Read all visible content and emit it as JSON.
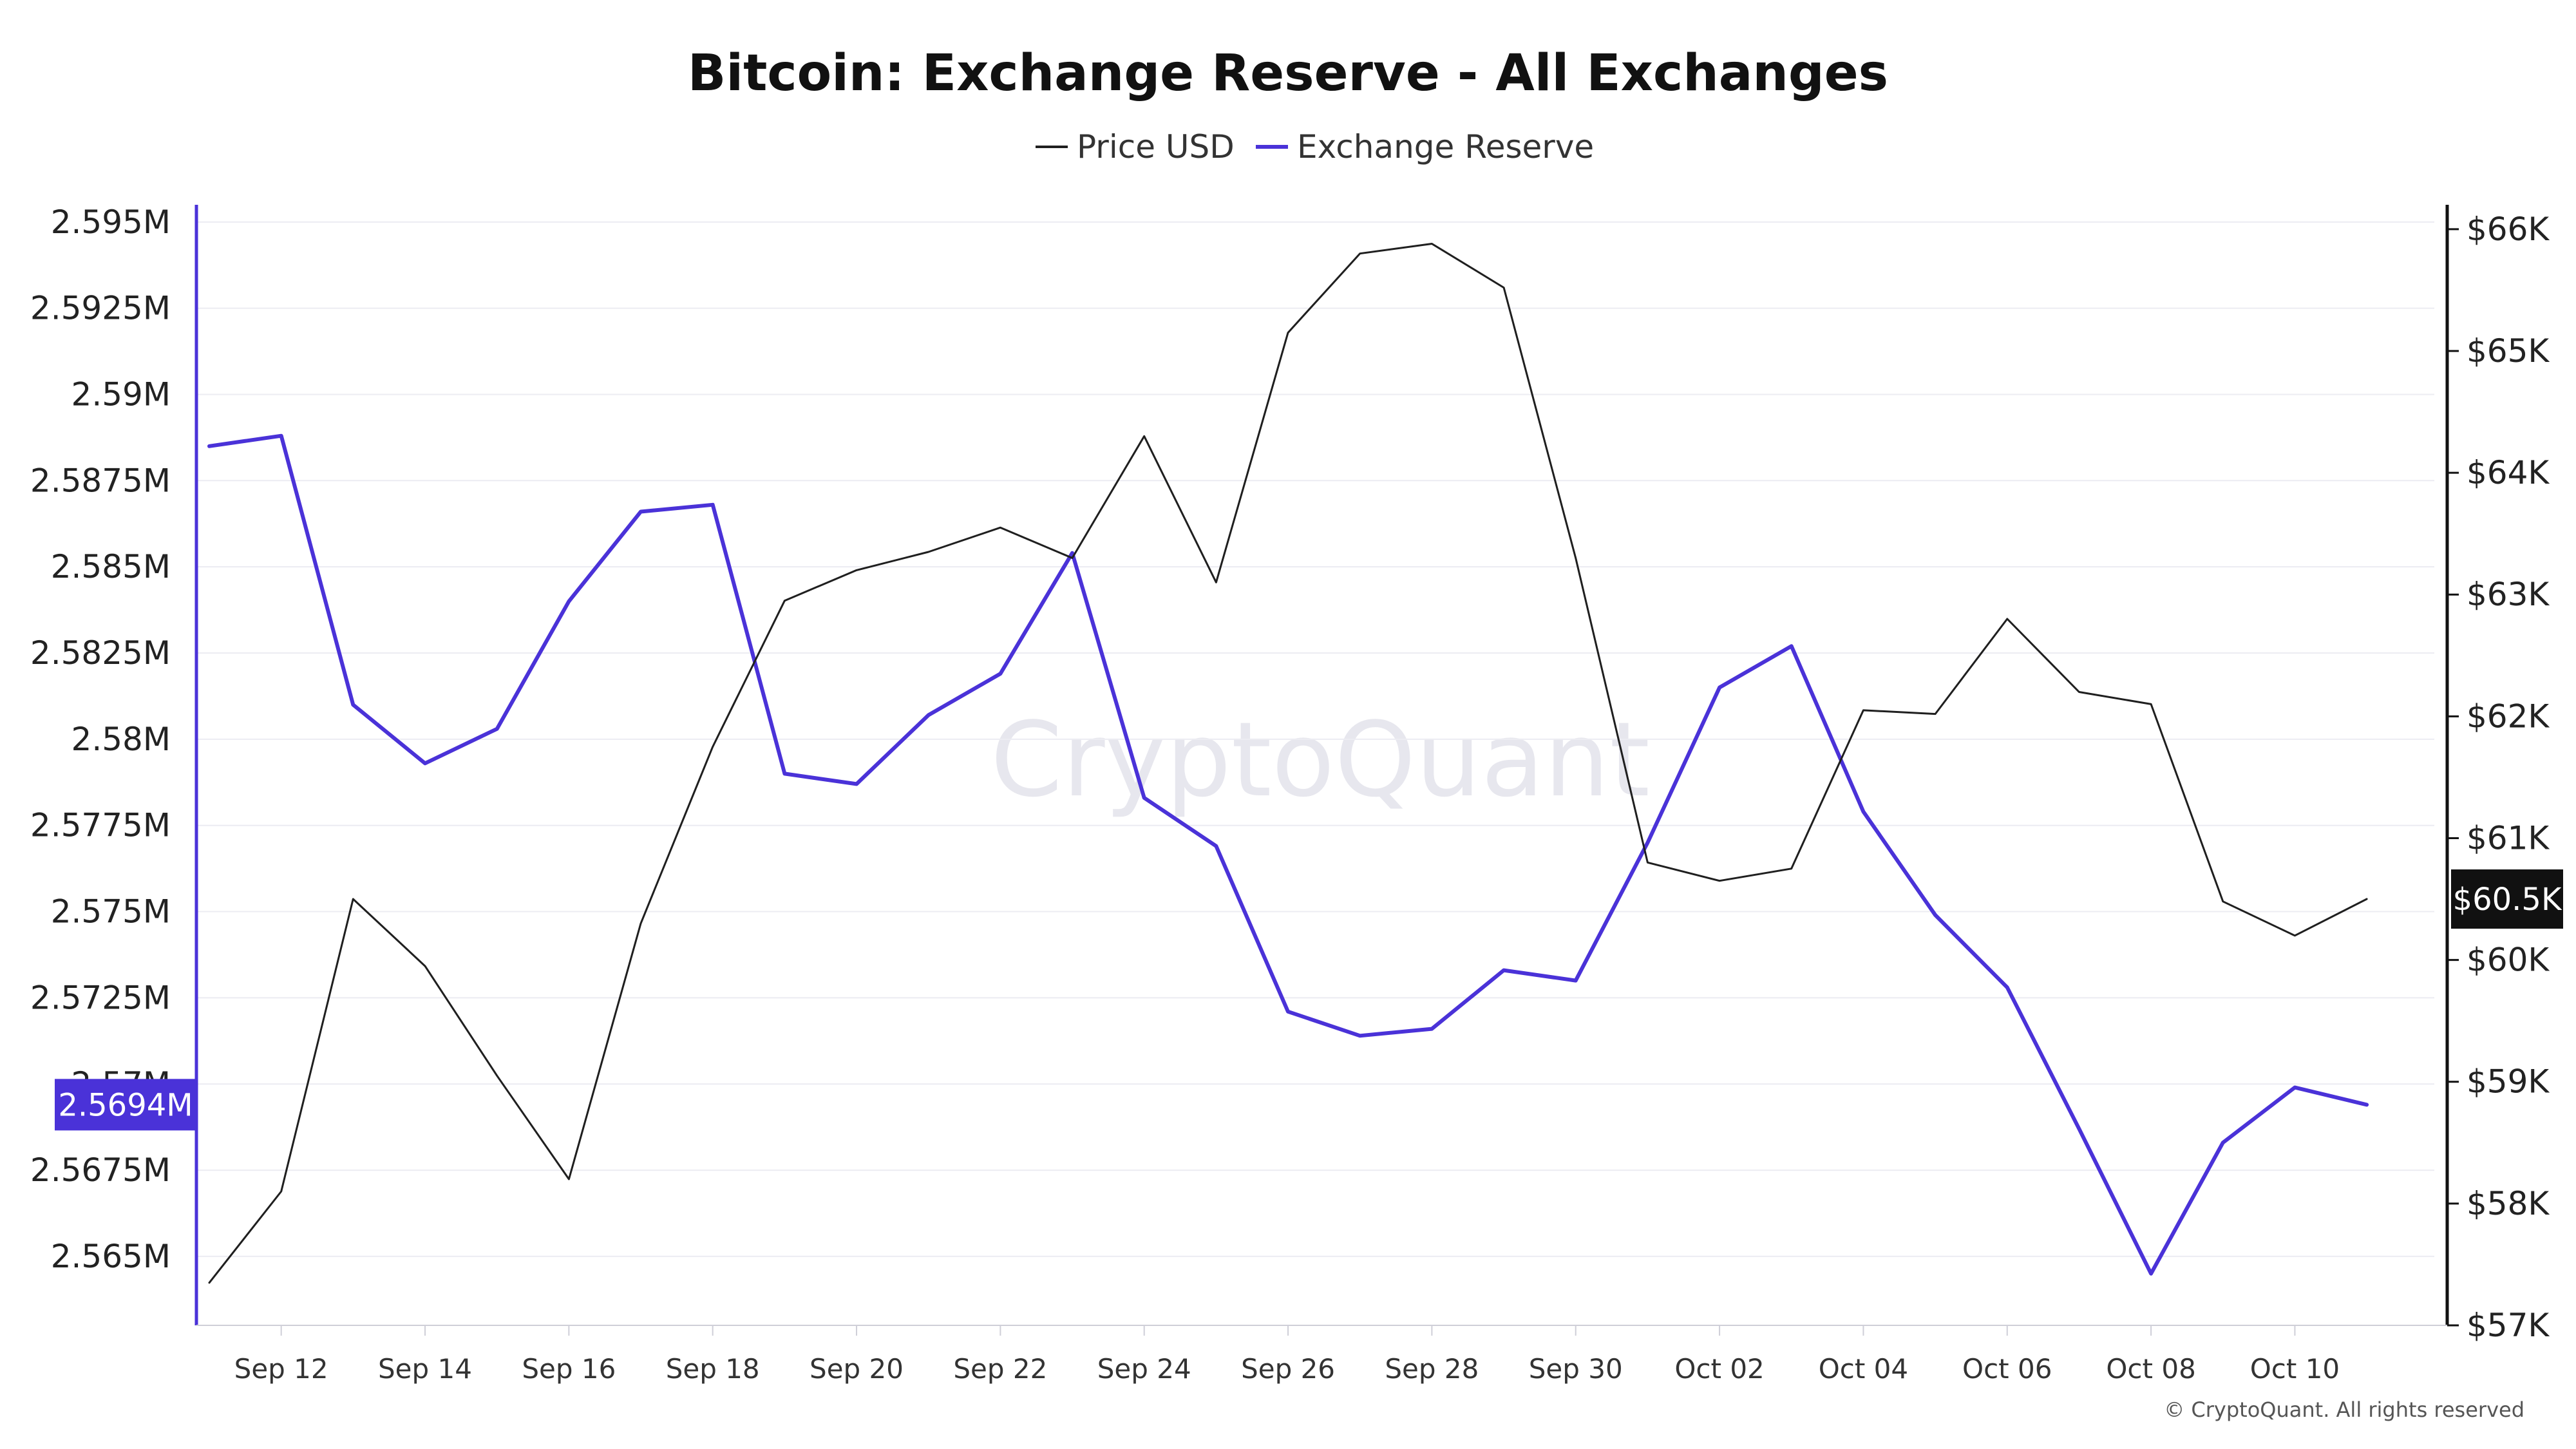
{
  "chart_data": {
    "type": "line",
    "title": "Bitcoin: Exchange Reserve - All Exchanges",
    "watermark": "CryptoQuant",
    "copyright": "© CryptoQuant. All rights reserved",
    "legend": {
      "placement": "top-center",
      "items": [
        "Price USD",
        "Exchange Reserve"
      ]
    },
    "grid": true,
    "x": [
      "Sep 11",
      "Sep 12",
      "Sep 13",
      "Sep 14",
      "Sep 15",
      "Sep 16",
      "Sep 17",
      "Sep 18",
      "Sep 19",
      "Sep 20",
      "Sep 21",
      "Sep 22",
      "Sep 23",
      "Sep 24",
      "Sep 25",
      "Sep 26",
      "Sep 27",
      "Sep 28",
      "Sep 29",
      "Sep 30",
      "Oct 01",
      "Oct 02",
      "Oct 03",
      "Oct 04",
      "Oct 05",
      "Oct 06",
      "Oct 07",
      "Oct 08",
      "Oct 09",
      "Oct 10",
      "Oct 11"
    ],
    "x_tick_labels": [
      "Sep 12",
      "Sep 14",
      "Sep 16",
      "Sep 18",
      "Sep 20",
      "Sep 22",
      "Sep 24",
      "Sep 26",
      "Sep 28",
      "Sep 30",
      "Oct 02",
      "Oct 04",
      "Oct 06",
      "Oct 08",
      "Oct 10"
    ],
    "left_axis": {
      "ylim": [
        2.563,
        2.5955
      ],
      "tick_values": [
        2.565,
        2.5675,
        2.57,
        2.5725,
        2.575,
        2.5775,
        2.58,
        2.5825,
        2.585,
        2.5875,
        2.59,
        2.5925,
        2.595
      ],
      "tick_labels": [
        "2.565M",
        "2.5675M",
        "2.57M",
        "2.5725M",
        "2.575M",
        "2.5775M",
        "2.58M",
        "2.5825M",
        "2.585M",
        "2.5875M",
        "2.59M",
        "2.5925M",
        "2.595M"
      ],
      "current_label": "2.5694M",
      "current_value": 2.5694
    },
    "right_axis": {
      "ylim": [
        57000,
        66200
      ],
      "tick_values": [
        57000,
        58000,
        59000,
        60000,
        61000,
        62000,
        63000,
        64000,
        65000,
        66000
      ],
      "tick_labels": [
        "$57K",
        "$58K",
        "$59K",
        "$60K",
        "$61K",
        "$62K",
        "$63K",
        "$64K",
        "$65K",
        "$66K"
      ],
      "current_label": "$60.5K",
      "current_value": 60500
    },
    "series": [
      {
        "name": "Exchange Reserve",
        "axis": "left",
        "color": "#4a32d8",
        "values": [
          2.5885,
          2.5888,
          2.581,
          2.5793,
          2.5803,
          2.584,
          2.5866,
          2.5868,
          2.579,
          2.5787,
          2.5807,
          2.5819,
          2.5854,
          2.5783,
          2.5769,
          2.5721,
          2.5714,
          2.5716,
          2.5733,
          2.573,
          2.577,
          2.5815,
          2.5827,
          2.5779,
          2.5749,
          2.5728,
          2.5687,
          2.5645,
          2.5683,
          2.5699,
          2.5694
        ]
      },
      {
        "name": "Price USD",
        "axis": "right",
        "color": "#1f1f1f",
        "values": [
          57350,
          58100,
          60500,
          59950,
          59050,
          58200,
          60300,
          61750,
          62950,
          63200,
          63350,
          63550,
          63300,
          64300,
          63100,
          65150,
          65800,
          65880,
          65520,
          63300,
          60800,
          60650,
          60750,
          62050,
          62020,
          62800,
          62200,
          62100,
          60480,
          60200,
          60500
        ]
      }
    ]
  }
}
